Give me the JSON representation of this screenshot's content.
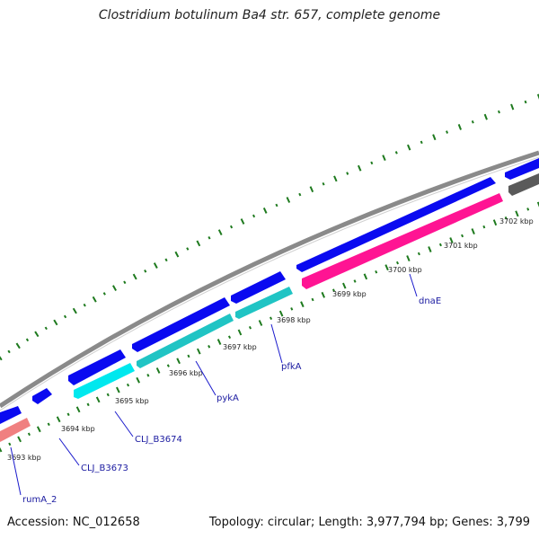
{
  "title": "Clostridium botulinum Ba4 str. 657, complete genome",
  "accession": "Accession: NC_012658",
  "topology": "Topology: circular; Length: 3,977,794 bp; Genes: 3,799",
  "colors": {
    "backbone": "#8a8a8a",
    "cds_forward": "#0a0af0",
    "cds_cyan": "#00e8ee",
    "cds_teal": "#20c4c4",
    "cds_pink": "#ff1493",
    "cds_salmon": "#f08080",
    "cds_gray": "#5a5a5a",
    "skew_dots": "#1e7a1e",
    "label_line": "#1a1acc"
  },
  "ticks": [
    "3693 kbp",
    "3694 kbp",
    "3695 kbp",
    "3696 kbp",
    "3697 kbp",
    "3698 kbp",
    "3699 kbp",
    "3700 kbp",
    "3701 kbp",
    "3702 kbp"
  ],
  "gene_labels": [
    "rumA_2",
    "CLJ_B3673",
    "CLJ_B3674",
    "pykA",
    "pfkA",
    "dnaE"
  ]
}
